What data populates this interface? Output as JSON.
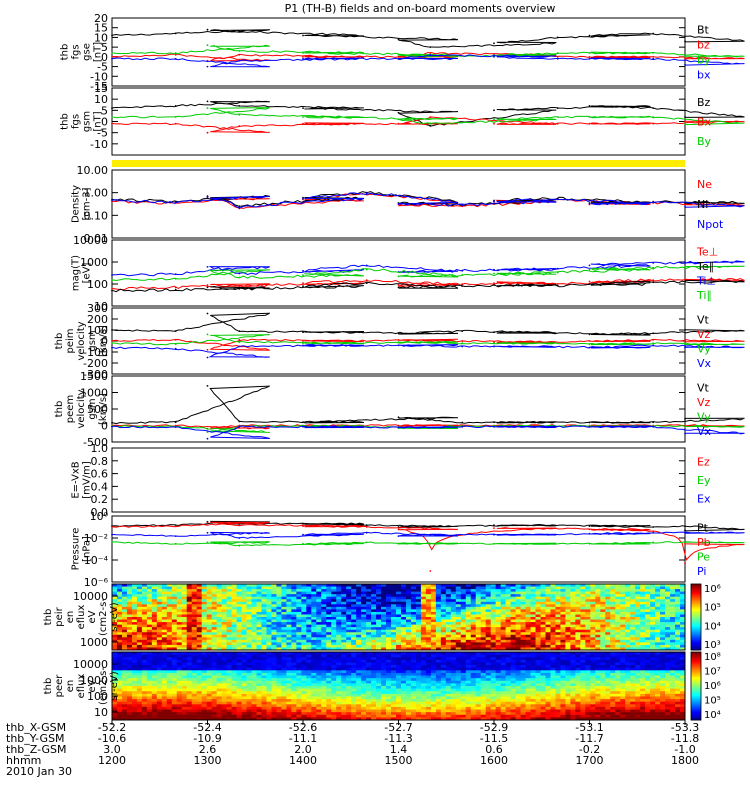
{
  "title": "P1 (TH-B) fields and on-board moments overview",
  "chart_data": [
    {
      "type": "line",
      "panel": "fgs_gse",
      "ylabel": [
        "thb",
        "fgs",
        "gse",
        "[nT]"
      ],
      "ylim": [
        -15,
        20
      ],
      "y_ticks": [
        "20",
        "15",
        "10",
        "5",
        "0",
        "-5",
        "-10",
        "-15"
      ],
      "x": [
        1200,
        1240,
        1300,
        1320,
        1400,
        1500,
        1520,
        1600,
        1640,
        1700,
        1740,
        1800
      ],
      "series": [
        {
          "name": "Bt",
          "color": "#000000",
          "values": [
            11,
            12,
            14,
            13,
            11,
            9,
            5,
            7,
            10,
            11,
            12,
            8
          ]
        },
        {
          "name": "bz",
          "color": "#ff0000",
          "values": [
            0,
            1,
            -2,
            1,
            0,
            0,
            2,
            1,
            0,
            0,
            0,
            -1
          ]
        },
        {
          "name": "by",
          "color": "#00cc00",
          "values": [
            2,
            2,
            6,
            3,
            2,
            1,
            0,
            1,
            2,
            2,
            2,
            0
          ]
        },
        {
          "name": "bx",
          "color": "#0000ff",
          "values": [
            -1,
            -1,
            -5,
            -2,
            -1,
            -1,
            1,
            0,
            -1,
            -1,
            -1,
            -4
          ]
        }
      ]
    },
    {
      "type": "line",
      "panel": "fgs_gsm",
      "ylabel": [
        "thb",
        "fgs",
        "gsm",
        "[nT]"
      ],
      "ylim": [
        -15,
        15
      ],
      "y_ticks": [
        "15",
        "10",
        "5",
        "0",
        "-5",
        "-10"
      ],
      "x": [
        1200,
        1240,
        1300,
        1320,
        1400,
        1500,
        1520,
        1600,
        1640,
        1700,
        1740,
        1800
      ],
      "series": [
        {
          "name": "Bz",
          "color": "#000000",
          "values": [
            6,
            7,
            9,
            7,
            6,
            4,
            -2,
            5,
            6,
            7,
            6,
            2
          ]
        },
        {
          "name": "Bx",
          "color": "#ff0000",
          "values": [
            -1,
            -1,
            -5,
            -2,
            -1,
            -1,
            2,
            -1,
            -1,
            -1,
            -1,
            0
          ]
        },
        {
          "name": "By",
          "color": "#00cc00",
          "values": [
            2,
            2,
            6,
            3,
            2,
            1,
            -1,
            1,
            2,
            2,
            2,
            -1
          ]
        }
      ]
    },
    {
      "type": "line",
      "panel": "density",
      "ylabel": [
        "Density",
        "[cm-3]"
      ],
      "y_ticks": [
        "10.00",
        "1.00",
        "0.10",
        "0.01"
      ],
      "log": true,
      "ylim": [
        0.01,
        10
      ],
      "x": [
        1200,
        1240,
        1300,
        1320,
        1400,
        1440,
        1500,
        1540,
        1600,
        1640,
        1700,
        1740,
        1800
      ],
      "series": [
        {
          "name": "Ne",
          "color": "#ff0000",
          "values": [
            0.4,
            0.35,
            0.6,
            0.2,
            0.5,
            0.9,
            0.3,
            0.25,
            0.4,
            0.5,
            0.3,
            0.35,
            0.3
          ]
        },
        {
          "name": "Ni",
          "color": "#000000",
          "values": [
            0.5,
            0.4,
            0.7,
            0.25,
            0.6,
            1.0,
            0.35,
            0.3,
            0.45,
            0.55,
            0.35,
            0.4,
            0.35
          ]
        },
        {
          "name": "Npot",
          "color": "#0000ff",
          "values": [
            0.45,
            0.38,
            0.65,
            0.22,
            0.55,
            0.95,
            0.32,
            0.28,
            0.42,
            0.52,
            0.32,
            0.38,
            0.25
          ]
        }
      ]
    },
    {
      "type": "line",
      "panel": "temperature",
      "ylabel": [
        "mag(T)",
        "[eV]"
      ],
      "y_ticks": [
        "10000",
        "1000",
        "100",
        "10"
      ],
      "log": true,
      "ylim": [
        10,
        10000
      ],
      "x": [
        1200,
        1240,
        1300,
        1320,
        1400,
        1440,
        1500,
        1540,
        1600,
        1640,
        1700,
        1740,
        1800
      ],
      "series": [
        {
          "name": "Te⊥",
          "color": "#ff0000",
          "values": [
            60,
            70,
            90,
            80,
            110,
            150,
            90,
            100,
            110,
            100,
            130,
            150,
            160
          ]
        },
        {
          "name": "Te∥",
          "color": "#000000",
          "values": [
            50,
            55,
            70,
            60,
            80,
            110,
            70,
            80,
            90,
            85,
            100,
            120,
            130
          ]
        },
        {
          "name": "Ti⊥",
          "color": "#0000ff",
          "values": [
            250,
            280,
            600,
            300,
            400,
            700,
            350,
            400,
            450,
            500,
            700,
            900,
            1000
          ]
        },
        {
          "name": "Ti∥",
          "color": "#00cc00",
          "values": [
            150,
            170,
            400,
            200,
            250,
            450,
            220,
            260,
            300,
            330,
            450,
            550,
            600
          ]
        }
      ]
    },
    {
      "type": "line",
      "panel": "peim_velocity",
      "ylabel": [
        "thb",
        "peim",
        "velocity",
        "gsm",
        "[km/s]"
      ],
      "ylim": [
        -300,
        300
      ],
      "y_ticks": [
        "300",
        "200",
        "100",
        "0",
        "-100",
        "-200",
        "-300"
      ],
      "x": [
        1200,
        1240,
        1300,
        1320,
        1400,
        1500,
        1540,
        1600,
        1700,
        1740,
        1800
      ],
      "series": [
        {
          "name": "Vt",
          "color": "#000000",
          "values": [
            100,
            90,
            250,
            90,
            80,
            70,
            90,
            80,
            60,
            70,
            100
          ]
        },
        {
          "name": "Vz",
          "color": "#ff0000",
          "values": [
            0,
            10,
            -80,
            10,
            0,
            10,
            0,
            -10,
            0,
            10,
            0
          ]
        },
        {
          "name": "Vy",
          "color": "#00cc00",
          "values": [
            -20,
            -30,
            60,
            -10,
            -20,
            -10,
            -20,
            -20,
            -30,
            -20,
            -30
          ]
        },
        {
          "name": "Vx",
          "color": "#0000ff",
          "values": [
            -60,
            -70,
            -150,
            -50,
            -40,
            -40,
            -50,
            -50,
            -60,
            -40,
            -60
          ]
        }
      ]
    },
    {
      "type": "line",
      "panel": "peem_velocity",
      "ylabel": [
        "thb",
        "peem",
        "velocity",
        "gsm",
        "[km/s]"
      ],
      "ylim": [
        -500,
        1500
      ],
      "y_ticks": [
        "1500",
        "1000",
        "500",
        "0",
        "-500"
      ],
      "x": [
        1200,
        1240,
        1300,
        1320,
        1400,
        1500,
        1540,
        1600,
        1700,
        1740,
        1800
      ],
      "series": [
        {
          "name": "Vt",
          "color": "#000000",
          "values": [
            80,
            100,
            1200,
            120,
            100,
            250,
            90,
            100,
            90,
            100,
            200
          ]
        },
        {
          "name": "Vz",
          "color": "#ff0000",
          "values": [
            0,
            0,
            -100,
            0,
            0,
            0,
            0,
            0,
            0,
            0,
            0
          ]
        },
        {
          "name": "Vy",
          "color": "#00cc00",
          "values": [
            -20,
            -30,
            -200,
            -20,
            -20,
            -80,
            -20,
            -20,
            -20,
            -20,
            -30
          ]
        },
        {
          "name": "Vx",
          "color": "#0000ff",
          "values": [
            -40,
            -50,
            -400,
            -40,
            -40,
            -60,
            -40,
            -40,
            -40,
            -40,
            -250
          ]
        }
      ]
    },
    {
      "type": "line",
      "panel": "e_field",
      "ylabel": [
        "E=-VxB",
        "[mV/m]"
      ],
      "ylim": [
        0,
        1
      ],
      "y_ticks": [
        "1.0",
        "0.8",
        "0.6",
        "0.4",
        "0.2",
        "0.0"
      ],
      "series": [
        {
          "name": "Ez",
          "color": "#ff0000",
          "values": []
        },
        {
          "name": "Ey",
          "color": "#00cc00",
          "values": []
        },
        {
          "name": "Ex",
          "color": "#0000ff",
          "values": []
        }
      ]
    },
    {
      "type": "line",
      "panel": "pressure",
      "ylabel": [
        "Pressure",
        "[nPa]"
      ],
      "y_ticks": [
        "10⁰",
        "10⁻²",
        "10⁻⁴",
        "10⁻⁶"
      ],
      "log": true,
      "ylim": [
        1e-06,
        1
      ],
      "x": [
        1200,
        1240,
        1300,
        1320,
        1400,
        1440,
        1500,
        1520,
        1600,
        1700,
        1740,
        1760,
        1800
      ],
      "series": [
        {
          "name": "Pt",
          "color": "#000000",
          "values": [
            0.12,
            0.15,
            0.3,
            0.2,
            0.2,
            0.15,
            0.1,
            0.12,
            0.15,
            0.12,
            0.1,
            0.12,
            0.05
          ]
        },
        {
          "name": "Pb",
          "color": "#ff0000",
          "values": [
            0.1,
            0.12,
            0.25,
            0.15,
            0.12,
            0.1,
            0.06,
            1e-05,
            0.08,
            0.06,
            0.04,
            5e-05,
            0.003
          ]
        },
        {
          "name": "Pe",
          "color": "#00cc00",
          "values": [
            0.004,
            0.003,
            0.004,
            0.002,
            0.003,
            0.004,
            0.003,
            0.003,
            0.003,
            0.003,
            0.004,
            0.004,
            0.004
          ]
        },
        {
          "name": "Pi",
          "color": "#0000ff",
          "values": [
            0.02,
            0.015,
            0.03,
            0.01,
            0.02,
            0.03,
            0.015,
            0.02,
            0.02,
            0.025,
            0.03,
            0.03,
            0.03
          ]
        }
      ]
    },
    {
      "type": "heatmap",
      "panel": "peir_spectrogram",
      "ylabel": [
        "thb",
        "peir",
        "en",
        "eflux",
        "eV",
        "(cm2-s-",
        "sr-eV)"
      ],
      "y_ticks": [
        "10000",
        "1000"
      ],
      "colorbar_ticks": [
        "10⁶",
        "10⁵",
        "10⁴",
        "10³"
      ]
    },
    {
      "type": "heatmap",
      "panel": "peer_spectrogram",
      "ylabel": [
        "thb",
        "peer",
        "en",
        "eflux",
        "eV",
        "(cm2-s-",
        "sr-eV)"
      ],
      "y_ticks": [
        "10000",
        "1000",
        "100",
        "10"
      ],
      "colorbar_ticks": [
        "10⁸",
        "10⁷",
        "10⁶",
        "10⁵",
        "10⁴"
      ]
    }
  ],
  "x_axis": {
    "row_labels": [
      "thb_X-GSM",
      "thb_Y-GSM",
      "thb_Z-GSM",
      "hhmm",
      "2010 Jan 30"
    ],
    "ticks": [
      {
        "x_gsm": "-52.2",
        "y_gsm": "-10.6",
        "z_gsm": "3.0",
        "hhmm": "1200"
      },
      {
        "x_gsm": "-52.4",
        "y_gsm": "-10.9",
        "z_gsm": "2.6",
        "hhmm": "1300"
      },
      {
        "x_gsm": "-52.6",
        "y_gsm": "-11.1",
        "z_gsm": "2.0",
        "hhmm": "1400"
      },
      {
        "x_gsm": "-52.7",
        "y_gsm": "-11.3",
        "z_gsm": "1.4",
        "hhmm": "1500"
      },
      {
        "x_gsm": "-52.9",
        "y_gsm": "-11.5",
        "z_gsm": "0.6",
        "hhmm": "1600"
      },
      {
        "x_gsm": "-53.1",
        "y_gsm": "-11.7",
        "z_gsm": "-0.2",
        "hhmm": "1700"
      },
      {
        "x_gsm": "-53.3",
        "y_gsm": "-11.8",
        "z_gsm": "-1.0",
        "hhmm": "1800"
      }
    ]
  }
}
